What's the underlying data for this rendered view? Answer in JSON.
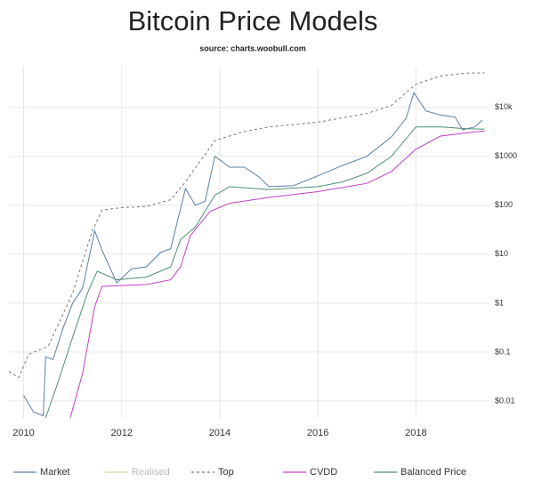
{
  "chart_data": {
    "type": "line",
    "title": "Bitcoin Price Models",
    "subtitle": "source: charts.woobull.com",
    "log_scale": true,
    "grid": true,
    "legend": "bottom",
    "xlim": [
      2009.7,
      2019.5
    ],
    "xticks": [
      2010,
      2012,
      2014,
      2016,
      2018
    ],
    "ylim": [
      0.0045,
      68000
    ],
    "yticks": [
      {
        "value": 0.01,
        "label": "$0.01"
      },
      {
        "value": 0.1,
        "label": "$0.1"
      },
      {
        "value": 1,
        "label": "$1"
      },
      {
        "value": 10,
        "label": "$10"
      },
      {
        "value": 100,
        "label": "$100"
      },
      {
        "value": 1000,
        "label": "$1000"
      },
      {
        "value": 10000,
        "label": "$10k"
      }
    ],
    "series": [
      {
        "name": "Market",
        "color": "#5b7fa6",
        "dash": false,
        "x": [
          2010.0,
          2010.2,
          2010.4,
          2010.45,
          2010.6,
          2010.8,
          2011.0,
          2011.2,
          2011.45,
          2011.6,
          2011.9,
          2012.2,
          2012.5,
          2012.8,
          2013.0,
          2013.3,
          2013.5,
          2013.7,
          2013.9,
          2014.2,
          2014.5,
          2014.8,
          2015.0,
          2015.5,
          2016.0,
          2016.5,
          2017.0,
          2017.5,
          2017.8,
          2017.96,
          2018.2,
          2018.5,
          2018.8,
          2018.95,
          2019.2,
          2019.35
        ],
        "values": [
          0.013,
          0.006,
          0.005,
          0.08,
          0.07,
          0.3,
          1,
          2,
          30,
          12,
          2.6,
          5,
          5.5,
          11,
          13,
          220,
          100,
          120,
          1000,
          600,
          600,
          380,
          240,
          250,
          400,
          650,
          1000,
          2500,
          6000,
          20000,
          8500,
          7000,
          6300,
          3500,
          4000,
          5500
        ]
      },
      {
        "name": "Realised",
        "color": "#c9d6a9",
        "dash": false,
        "hidden": true,
        "x": [],
        "values": []
      },
      {
        "name": "Top",
        "color": "#777777",
        "dash": true,
        "x": [
          2009.7,
          2009.9,
          2010.1,
          2010.5,
          2011.0,
          2011.4,
          2011.6,
          2012.0,
          2012.5,
          2013.0,
          2013.3,
          2013.9,
          2014.5,
          2015.0,
          2016.0,
          2017.0,
          2017.5,
          2018.0,
          2018.5,
          2019.0,
          2019.4
        ],
        "values": [
          0.04,
          0.03,
          0.09,
          0.13,
          1.6,
          30,
          80,
          90,
          95,
          130,
          300,
          2100,
          3200,
          4000,
          5000,
          7500,
          11000,
          30000,
          44000,
          50000,
          51000
        ]
      },
      {
        "name": "CVDD",
        "color": "#c040c0",
        "dash": false,
        "x": [
          2010.95,
          2011.2,
          2011.45,
          2011.6,
          2012.5,
          2013.0,
          2013.2,
          2013.4,
          2013.8,
          2014.2,
          2015.0,
          2016.0,
          2017.0,
          2017.5,
          2018.0,
          2018.5,
          2019.0,
          2019.4
        ],
        "values": [
          0.0045,
          0.036,
          0.85,
          2.2,
          2.4,
          3,
          5.5,
          24,
          75,
          110,
          145,
          190,
          280,
          490,
          1400,
          2600,
          3000,
          3300
        ]
      },
      {
        "name": "Balanced Price",
        "color": "#4f8f72",
        "dash": false,
        "x": [
          2010.45,
          2010.7,
          2011.0,
          2011.3,
          2011.5,
          2011.9,
          2012.5,
          2013.0,
          2013.2,
          2013.5,
          2013.9,
          2014.2,
          2015.0,
          2016.0,
          2016.5,
          2017.0,
          2017.5,
          2018.0,
          2018.5,
          2019.0,
          2019.4
        ],
        "values": [
          0.0045,
          0.024,
          0.2,
          1.6,
          4.5,
          3,
          3.4,
          5.5,
          20,
          36,
          160,
          240,
          210,
          240,
          300,
          450,
          1000,
          4000,
          4000,
          3700,
          3600
        ]
      }
    ]
  }
}
